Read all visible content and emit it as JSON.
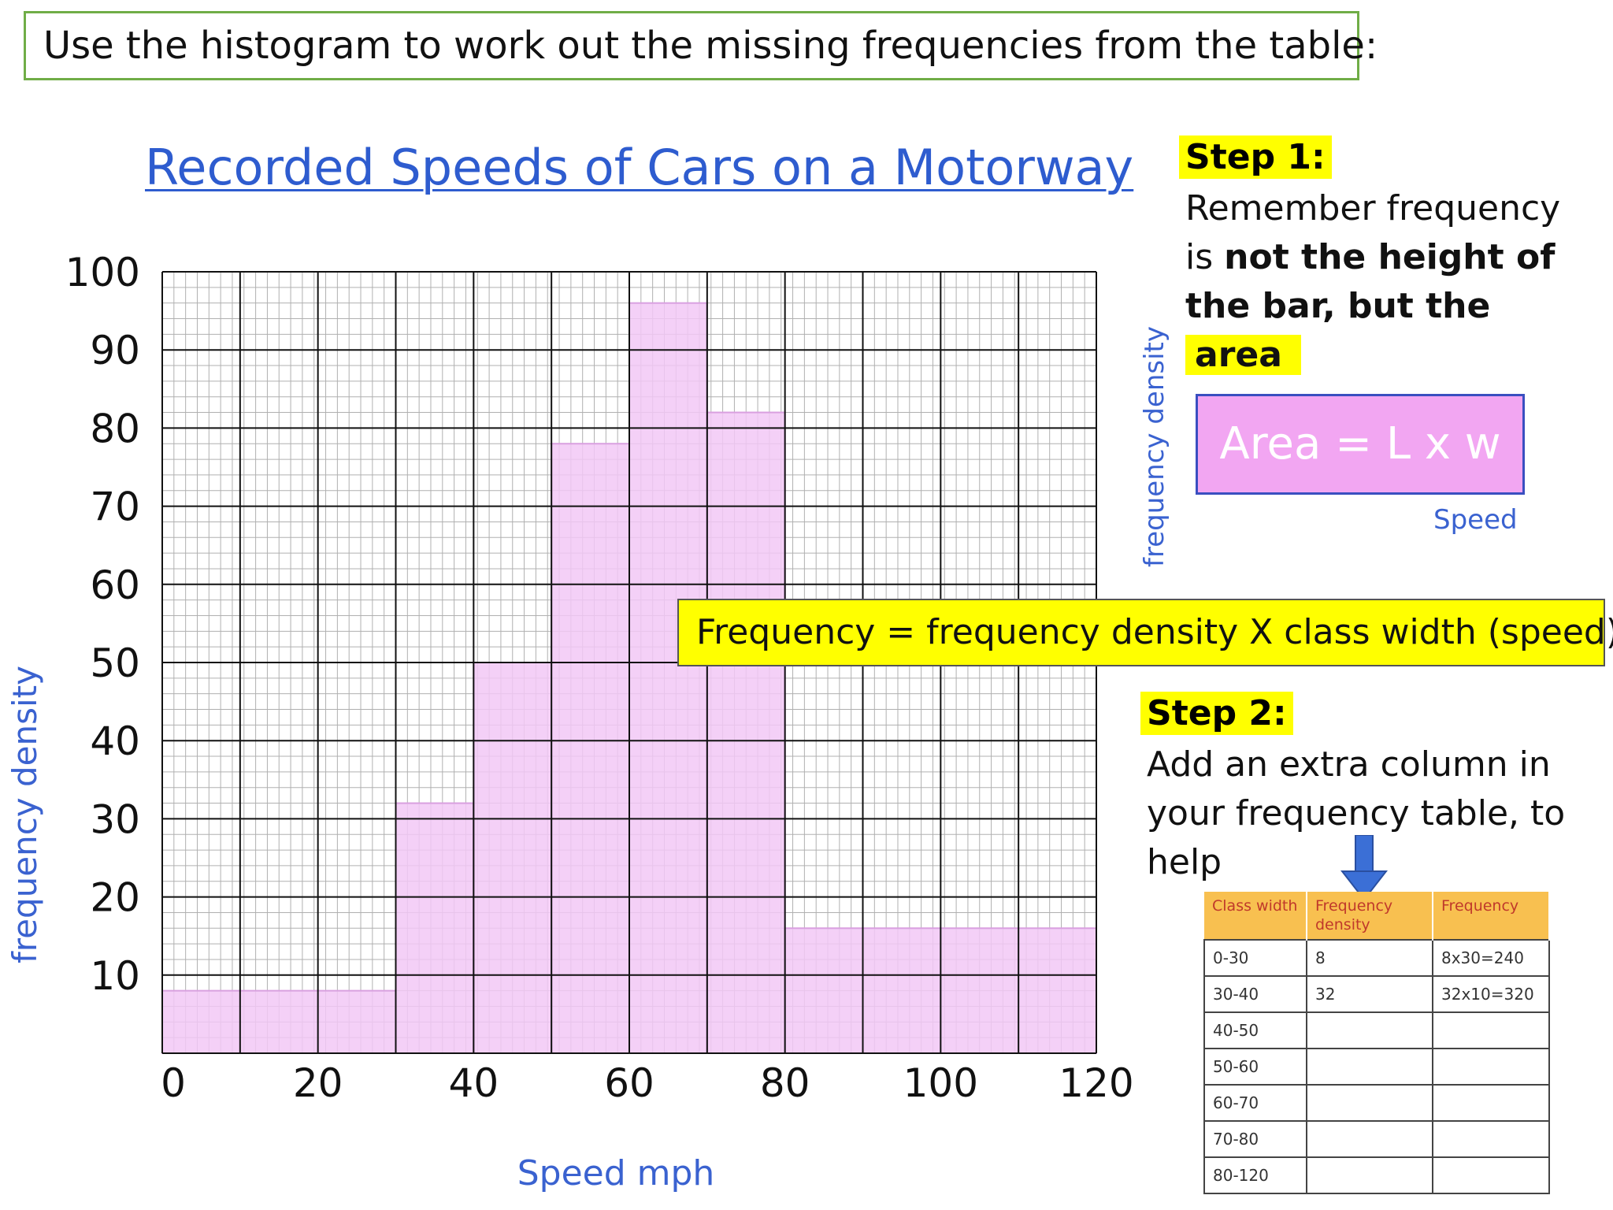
{
  "instruction": "Use the histogram to work out the missing frequencies from the table:",
  "step1": {
    "label": "Step 1:",
    "text_a": "Remember frequency is ",
    "text_b": "not the height of the bar, but the",
    "text_c": "area",
    "formula_box": "Area = L x w",
    "side_ylabel": "frequency density",
    "side_xlabel": "Speed"
  },
  "formula": "Frequency = frequency density X class width (speed)",
  "step2": {
    "label": "Step 2:",
    "text": "Add an extra column in your frequency table, to help"
  },
  "table": {
    "headers": [
      "Class width",
      "Frequency density",
      "Frequency"
    ],
    "rows": [
      [
        "0-30",
        "8",
        "8x30=240"
      ],
      [
        "30-40",
        "32",
        "32x10=320"
      ],
      [
        "40-50",
        "",
        ""
      ],
      [
        "50-60",
        "",
        ""
      ],
      [
        "60-70",
        "",
        ""
      ],
      [
        "70-80",
        "",
        ""
      ],
      [
        "80-120",
        "",
        ""
      ]
    ]
  },
  "colors": {
    "bar_fill": "#f2c8f6",
    "bar_edge": "#d9a0e0",
    "title_color": "#2e5ccf",
    "label_color": "#3a62d0",
    "highlight": "#ffff00",
    "table_header": "#f8c050"
  },
  "chart_data": {
    "type": "bar",
    "title": "Recorded Speeds of Cars on a Motorway",
    "xlabel": "Speed mph",
    "ylabel": "frequency density",
    "xlim": [
      0,
      120
    ],
    "ylim": [
      0,
      100
    ],
    "x_ticks": [
      0,
      20,
      40,
      60,
      80,
      100,
      120
    ],
    "y_ticks": [
      10,
      20,
      30,
      40,
      50,
      60,
      70,
      80,
      90,
      100
    ],
    "grid": true,
    "bins": [
      {
        "start": 0,
        "end": 30,
        "value": 8
      },
      {
        "start": 30,
        "end": 40,
        "value": 32
      },
      {
        "start": 40,
        "end": 50,
        "value": 50
      },
      {
        "start": 50,
        "end": 60,
        "value": 78
      },
      {
        "start": 60,
        "end": 70,
        "value": 96
      },
      {
        "start": 70,
        "end": 80,
        "value": 82
      },
      {
        "start": 80,
        "end": 120,
        "value": 16
      }
    ]
  }
}
